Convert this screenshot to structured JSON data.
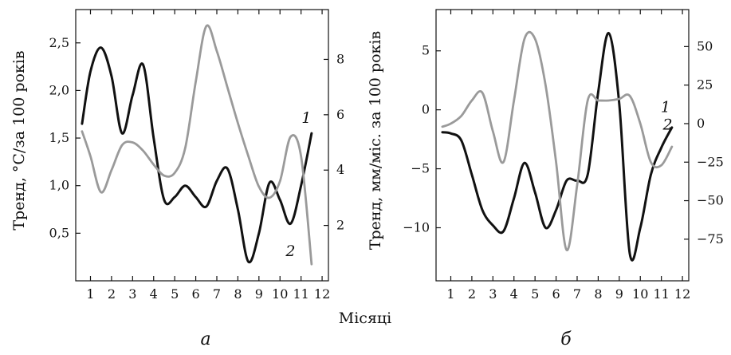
{
  "xlabel_shared": "Місяці",
  "chart_data": [
    {
      "type": "line",
      "panel_label": "а",
      "ylabel_left": "Тренд, °С/за 100 років",
      "ylabel_right": "",
      "x_ticks": [
        "1",
        "2",
        "3",
        "4",
        "5",
        "6",
        "7",
        "8",
        "9",
        "10",
        "11",
        "12"
      ],
      "left_ticks": [
        "0,5",
        "1,0",
        "1,5",
        "2,0",
        "2,5"
      ],
      "right_ticks": [
        "2",
        "4",
        "6",
        "8"
      ],
      "xlim": [
        0.3,
        12.3
      ],
      "ylim_left": [
        0.0,
        2.85
      ],
      "ylim_right": [
        0.0,
        9.8
      ],
      "grid": false,
      "series": [
        {
          "name": "1",
          "axis": "left",
          "color": "#111111",
          "x": [
            0.6,
            1.0,
            1.5,
            2.0,
            2.5,
            3.0,
            3.5,
            4.0,
            4.5,
            5.0,
            5.5,
            6.0,
            6.5,
            7.0,
            7.5,
            8.0,
            8.5,
            9.0,
            9.5,
            10.0,
            10.5,
            11.0,
            11.5
          ],
          "y": [
            1.65,
            2.2,
            2.45,
            2.15,
            1.55,
            1.95,
            2.27,
            1.5,
            0.85,
            0.88,
            1.0,
            0.88,
            0.78,
            1.05,
            1.18,
            0.75,
            0.2,
            0.5,
            1.03,
            0.85,
            0.6,
            1.0,
            1.55
          ]
        },
        {
          "name": "2",
          "axis": "right",
          "color": "#9a9a9a",
          "x": [
            0.6,
            1.0,
            1.5,
            2.0,
            2.5,
            3.0,
            3.5,
            4.0,
            4.5,
            5.0,
            5.5,
            6.0,
            6.5,
            7.0,
            7.5,
            8.0,
            8.5,
            9.0,
            9.5,
            10.0,
            10.5,
            11.0,
            11.5
          ],
          "y": [
            5.4,
            4.5,
            3.2,
            4.0,
            4.9,
            5.0,
            4.7,
            4.2,
            3.8,
            3.9,
            4.8,
            7.2,
            9.2,
            8.3,
            7.0,
            5.7,
            4.5,
            3.4,
            3.0,
            3.6,
            5.2,
            4.5,
            0.6
          ]
        }
      ]
    },
    {
      "type": "line",
      "panel_label": "б",
      "ylabel_left": "Тренд, мм/міс. за 100 років",
      "ylabel_right": "",
      "x_ticks": [
        "1",
        "2",
        "3",
        "4",
        "5",
        "6",
        "7",
        "8",
        "9",
        "10",
        "11",
        "12"
      ],
      "left_ticks": [
        "−10",
        "−5",
        "0",
        "5"
      ],
      "right_ticks": [
        "−75",
        "−50",
        "−25",
        "0",
        "25",
        "50"
      ],
      "xlim": [
        0.3,
        12.3
      ],
      "ylim_left": [
        -14.5,
        8.5
      ],
      "ylim_right": [
        -102.0,
        74.0
      ],
      "grid": false,
      "series": [
        {
          "name": "1",
          "axis": "left",
          "color": "#111111",
          "x": [
            0.6,
            1.0,
            1.5,
            2.0,
            2.5,
            3.0,
            3.5,
            4.0,
            4.5,
            5.0,
            5.5,
            6.0,
            6.5,
            7.0,
            7.5,
            8.0,
            8.5,
            9.0,
            9.5,
            10.0,
            10.5,
            11.0,
            11.5
          ],
          "y": [
            -1.9,
            -2.0,
            -2.6,
            -5.5,
            -8.5,
            -9.8,
            -10.3,
            -7.5,
            -4.5,
            -7.0,
            -10.0,
            -8.5,
            -6.0,
            -6.0,
            -5.5,
            1.5,
            6.5,
            0.5,
            -12.2,
            -10.0,
            -5.5,
            -3.2,
            -1.5
          ]
        },
        {
          "name": "2",
          "axis": "right",
          "color": "#9a9a9a",
          "x": [
            0.6,
            1.0,
            1.5,
            2.0,
            2.5,
            3.0,
            3.5,
            4.0,
            4.5,
            5.0,
            5.5,
            6.0,
            6.5,
            7.0,
            7.5,
            8.0,
            8.5,
            9.0,
            9.5,
            10.0,
            10.5,
            11.0,
            11.5
          ],
          "y": [
            -2.0,
            0.0,
            5.0,
            15.0,
            20.0,
            -5.0,
            -25.0,
            15.0,
            55.0,
            55.0,
            25.0,
            -25.0,
            -82.0,
            -40.0,
            15.0,
            15.0,
            15.0,
            16.0,
            18.0,
            0.0,
            -25.0,
            -27.0,
            -15.0
          ]
        }
      ]
    }
  ]
}
